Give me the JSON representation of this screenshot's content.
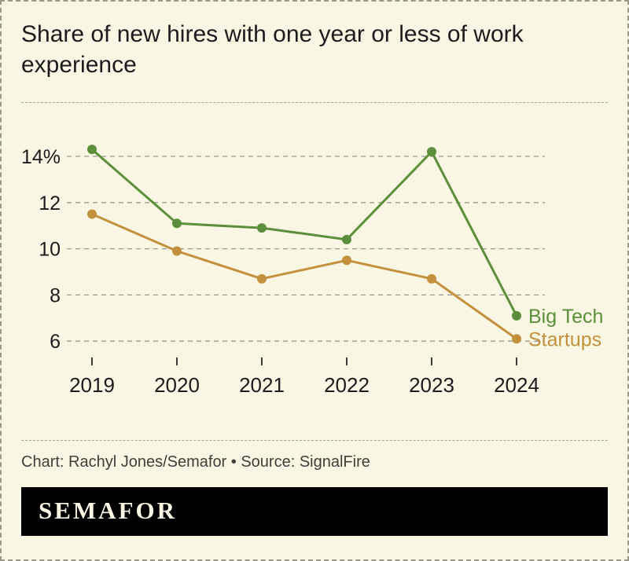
{
  "page": {
    "title": "Share of new hires with one year or less of work experience",
    "credit": "Chart: Rachyl Jones/Semafor • Source: SignalFire",
    "logo_text": "SEMAFOR"
  },
  "colors": {
    "background": "#f9f6e3",
    "border": "#9b988a",
    "grid": "#9c9a90",
    "text": "#1c1c1c",
    "axis_tick": "#3a3a35",
    "credit_text": "#3f3f3a",
    "logo_background": "#000000",
    "logo_text": "#f9f6e3",
    "big_tech": "#5c8f3b",
    "startups": "#c3913d"
  },
  "chart_data": {
    "type": "line",
    "title": "Share of new hires with one year or less of work experience",
    "xlabel": "",
    "ylabel": "",
    "categories": [
      "2019",
      "2020",
      "2021",
      "2022",
      "2023",
      "2024"
    ],
    "series": [
      {
        "name": "Big Tech",
        "color": "#5c8f3b",
        "values": [
          14.3,
          11.1,
          10.9,
          10.4,
          14.2,
          7.1
        ]
      },
      {
        "name": "Startups",
        "color": "#c3913d",
        "values": [
          11.5,
          9.9,
          8.7,
          9.5,
          8.7,
          6.1
        ]
      }
    ],
    "y_ticks": [
      {
        "value": 6,
        "label": "6"
      },
      {
        "value": 8,
        "label": "8"
      },
      {
        "value": 10,
        "label": "10"
      },
      {
        "value": 12,
        "label": "12"
      },
      {
        "value": 14,
        "label": "14%"
      }
    ],
    "ylim": [
      5.2,
      15.2
    ],
    "grid": "horizontal-dashed",
    "legend_position": "line-end-labels",
    "marker": "circle"
  }
}
